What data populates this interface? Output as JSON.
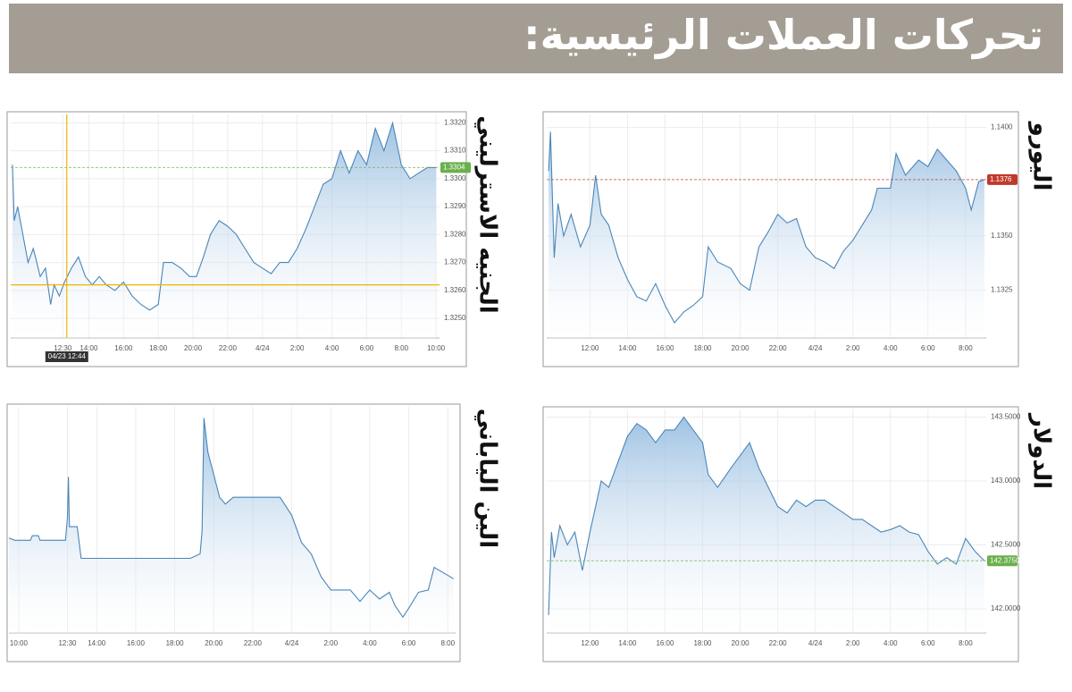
{
  "title": "تحركات العملات الرئيسية:",
  "chart_data": [
    {
      "type": "area",
      "title": "اليورو",
      "color": "#4a86b8",
      "grid": true,
      "xlim": [
        9.7,
        33.1
      ],
      "ylim": [
        1.1303,
        1.1406
      ],
      "xticks": [
        {
          "value": 12,
          "label": "12:00"
        },
        {
          "value": 14,
          "label": "14:00"
        },
        {
          "value": 16,
          "label": "16:00"
        },
        {
          "value": 18,
          "label": "18:00"
        },
        {
          "value": 20,
          "label": "20:00"
        },
        {
          "value": 22,
          "label": "22:00"
        },
        {
          "value": 24,
          "label": "4/24"
        },
        {
          "value": 26,
          "label": "2:00"
        },
        {
          "value": 28,
          "label": "4:00"
        },
        {
          "value": 30,
          "label": "6:00"
        },
        {
          "value": 32,
          "label": "8:00"
        }
      ],
      "yticks": [
        {
          "value": 1.14,
          "label": "1.1400"
        },
        {
          "value": 1.135,
          "label": "1.1350"
        },
        {
          "value": 1.1325,
          "label": "1.1325"
        }
      ],
      "last_value": {
        "value": 1.1376,
        "label": "1.1376",
        "color": "#c0392b"
      },
      "x": [
        9.8,
        9.9,
        10.1,
        10.3,
        10.6,
        11,
        11.5,
        12,
        12.3,
        12.6,
        13,
        13.5,
        14,
        14.5,
        15,
        15.5,
        16,
        16.5,
        17,
        17.5,
        18,
        18.3,
        18.8,
        19.5,
        20,
        20.5,
        21,
        21.5,
        22,
        22.5,
        23,
        23.5,
        24,
        24.5,
        25,
        25.5,
        26,
        26.5,
        27,
        27.3,
        28,
        28.3,
        28.8,
        29.5,
        30,
        30.5,
        31,
        31.5,
        32,
        32.3,
        32.7,
        33
      ],
      "values": [
        1.138,
        1.1398,
        1.134,
        1.1365,
        1.135,
        1.136,
        1.1345,
        1.1355,
        1.1378,
        1.136,
        1.1355,
        1.134,
        1.133,
        1.1322,
        1.132,
        1.1328,
        1.1318,
        1.131,
        1.1315,
        1.1318,
        1.1322,
        1.1345,
        1.1338,
        1.1335,
        1.1328,
        1.1325,
        1.1345,
        1.1352,
        1.136,
        1.1356,
        1.1358,
        1.1345,
        1.134,
        1.1338,
        1.1335,
        1.1343,
        1.1348,
        1.1355,
        1.1362,
        1.1372,
        1.1372,
        1.1388,
        1.1378,
        1.1385,
        1.1382,
        1.139,
        1.1385,
        1.138,
        1.1372,
        1.1362,
        1.1375,
        1.1376
      ]
    },
    {
      "type": "area",
      "title": "الجنيه الاسترليني",
      "color": "#4a86b8",
      "grid": true,
      "xlim": [
        9.5,
        34.2
      ],
      "ylim": [
        1.3243,
        1.3323
      ],
      "xticks": [
        {
          "value": 12.5,
          "label": "12:30"
        },
        {
          "value": 14,
          "label": "14:00"
        },
        {
          "value": 16,
          "label": "16:00"
        },
        {
          "value": 18,
          "label": "18:00"
        },
        {
          "value": 20,
          "label": "20:00"
        },
        {
          "value": 22,
          "label": "22:00"
        },
        {
          "value": 24,
          "label": "4/24"
        },
        {
          "value": 26,
          "label": "2:00"
        },
        {
          "value": 28,
          "label": "4:00"
        },
        {
          "value": 30,
          "label": "6:00"
        },
        {
          "value": 32,
          "label": "8:00"
        },
        {
          "value": 34,
          "label": "10:00"
        }
      ],
      "yticks": [
        {
          "value": 1.332,
          "label": "1.3320"
        },
        {
          "value": 1.331,
          "label": "1.3310"
        },
        {
          "value": 1.33,
          "label": "1.3300"
        },
        {
          "value": 1.329,
          "label": "1.3290"
        },
        {
          "value": 1.328,
          "label": "1.3280"
        },
        {
          "value": 1.327,
          "label": "1.3270"
        },
        {
          "value": 1.326,
          "label": "1.3260"
        },
        {
          "value": 1.325,
          "label": "1.3250"
        }
      ],
      "last_value": {
        "value": 1.3304,
        "label": "1.3304",
        "color": "#6ab04c"
      },
      "crosshair": {
        "x": 12.73,
        "y": 1.3262,
        "label": "04/23 12:44"
      },
      "x": [
        9.6,
        9.7,
        9.9,
        10.2,
        10.5,
        10.8,
        11.2,
        11.5,
        11.8,
        12,
        12.3,
        12.6,
        13,
        13.4,
        13.8,
        14.2,
        14.6,
        15,
        15.5,
        16,
        16.5,
        17,
        17.5,
        18,
        18.3,
        18.8,
        19.3,
        19.8,
        20.2,
        20.6,
        21,
        21.5,
        22,
        22.5,
        23,
        23.5,
        24,
        24.5,
        25,
        25.5,
        26,
        26.5,
        27,
        27.5,
        28,
        28.5,
        29,
        29.5,
        30,
        30.5,
        31,
        31.5,
        32,
        32.5,
        33,
        33.5,
        34
      ],
      "values": [
        1.3305,
        1.3285,
        1.329,
        1.328,
        1.327,
        1.3275,
        1.3265,
        1.3268,
        1.3255,
        1.3262,
        1.3258,
        1.3263,
        1.3268,
        1.3272,
        1.3265,
        1.3262,
        1.3265,
        1.3262,
        1.326,
        1.3263,
        1.3258,
        1.3255,
        1.3253,
        1.3255,
        1.327,
        1.327,
        1.3268,
        1.3265,
        1.3265,
        1.3272,
        1.328,
        1.3285,
        1.3283,
        1.328,
        1.3275,
        1.327,
        1.3268,
        1.3266,
        1.327,
        1.327,
        1.3275,
        1.3282,
        1.329,
        1.3298,
        1.33,
        1.331,
        1.3302,
        1.331,
        1.3305,
        1.3318,
        1.331,
        1.332,
        1.3305,
        1.33,
        1.3302,
        1.3304,
        1.3304
      ]
    },
    {
      "type": "area",
      "title": "الدولار",
      "color": "#4a86b8",
      "grid": true,
      "xlim": [
        9.7,
        33.1
      ],
      "ylim": [
        141.81,
        143.56
      ],
      "xticks": [
        {
          "value": 12,
          "label": "12:00"
        },
        {
          "value": 14,
          "label": "14:00"
        },
        {
          "value": 16,
          "label": "16:00"
        },
        {
          "value": 18,
          "label": "18:00"
        },
        {
          "value": 20,
          "label": "20:00"
        },
        {
          "value": 22,
          "label": "22:00"
        },
        {
          "value": 24,
          "label": "4/24"
        },
        {
          "value": 26,
          "label": "2:00"
        },
        {
          "value": 28,
          "label": "4:00"
        },
        {
          "value": 30,
          "label": "6:00"
        },
        {
          "value": 32,
          "label": "8:00"
        }
      ],
      "yticks": [
        {
          "value": 143.5,
          "label": "143.5000"
        },
        {
          "value": 143,
          "label": "143.0000"
        },
        {
          "value": 142.5,
          "label": "142.5000"
        },
        {
          "value": 142,
          "label": "142.0000"
        }
      ],
      "last_value": {
        "value": 142.375,
        "label": "142.3750",
        "color": "#6ab04c"
      },
      "x": [
        9.8,
        9.95,
        10.1,
        10.4,
        10.8,
        11.2,
        11.6,
        12,
        12.3,
        12.6,
        13,
        13.5,
        14,
        14.5,
        15,
        15.5,
        16,
        16.5,
        17,
        17.5,
        18,
        18.3,
        18.8,
        19.5,
        20,
        20.5,
        21,
        21.5,
        22,
        22.5,
        23,
        23.5,
        24,
        24.5,
        25,
        25.5,
        26,
        26.5,
        27,
        27.5,
        28,
        28.5,
        29,
        29.5,
        30,
        30.5,
        31,
        31.5,
        32,
        32.5,
        33
      ],
      "values": [
        141.95,
        142.6,
        142.4,
        142.65,
        142.5,
        142.6,
        142.3,
        142.6,
        142.8,
        143.0,
        142.95,
        143.15,
        143.35,
        143.45,
        143.4,
        143.3,
        143.4,
        143.4,
        143.5,
        143.4,
        143.3,
        143.05,
        142.95,
        143.1,
        143.2,
        143.3,
        143.1,
        142.95,
        142.8,
        142.75,
        142.85,
        142.8,
        142.85,
        142.85,
        142.8,
        142.75,
        142.7,
        142.7,
        142.65,
        142.6,
        142.62,
        142.65,
        142.6,
        142.58,
        142.45,
        142.35,
        142.4,
        142.35,
        142.55,
        142.45,
        142.375
      ]
    },
    {
      "type": "area",
      "title": "الين الياباني",
      "color": "#4a86b8",
      "grid": true,
      "xlim": [
        9.5,
        32.4
      ],
      "ylim": [
        0,
        100
      ],
      "xticks": [
        {
          "value": 10,
          "label": "10:00"
        },
        {
          "value": 12.5,
          "label": "12:30"
        },
        {
          "value": 14,
          "label": "14:00"
        },
        {
          "value": 16,
          "label": "16:00"
        },
        {
          "value": 18,
          "label": "18:00"
        },
        {
          "value": 20,
          "label": "20:00"
        },
        {
          "value": 22,
          "label": "22:00"
        },
        {
          "value": 24,
          "label": "4/24"
        },
        {
          "value": 26,
          "label": "2:00"
        },
        {
          "value": 28,
          "label": "4:00"
        },
        {
          "value": 30,
          "label": "6:00"
        },
        {
          "value": 32,
          "label": "8:00"
        }
      ],
      "x": [
        9.5,
        9.8,
        10.6,
        10.7,
        11,
        11.1,
        12.4,
        12.5,
        12.55,
        12.6,
        13,
        13.2,
        17.8,
        18.8,
        19.3,
        19.4,
        19.5,
        19.7,
        20,
        20.3,
        20.6,
        21,
        23.4,
        24,
        24.5,
        25,
        25.5,
        26,
        27,
        27.5,
        28,
        28.5,
        29,
        29.3,
        29.7,
        30,
        30.5,
        31,
        31.3,
        31.7,
        32.3
      ],
      "values": [
        42,
        41,
        41,
        43,
        43,
        41,
        41,
        51,
        69,
        47,
        47,
        33,
        33,
        33,
        35,
        45,
        95,
        80,
        70,
        60,
        57,
        60,
        60,
        52,
        40,
        35,
        25,
        19,
        19,
        14,
        19,
        15,
        18,
        12,
        7,
        11,
        18,
        19,
        29,
        27,
        24
      ]
    }
  ]
}
